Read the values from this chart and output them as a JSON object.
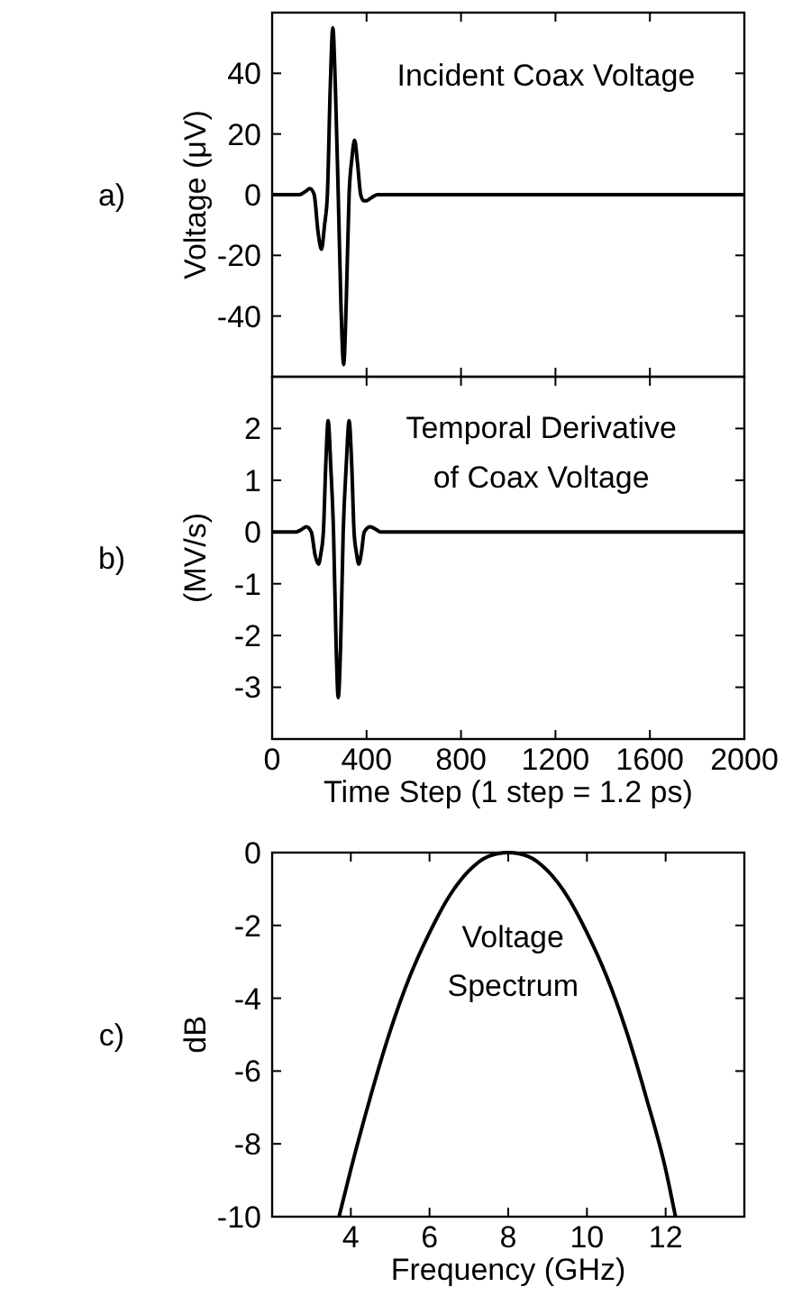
{
  "chart_data": [
    {
      "type": "line",
      "title": "a)",
      "ylabel": "Voltage (μV)",
      "annotations": [
        "Incident Coax Voltage"
      ],
      "xlim": [
        0,
        2000
      ],
      "xticks": [
        0,
        400,
        800,
        1200,
        1600,
        2000
      ],
      "ylim": [
        -60,
        60
      ],
      "yticks": [
        -40,
        -20,
        0,
        20,
        40
      ],
      "tick_labels": "y",
      "grid": false,
      "line_style": "solid",
      "series": [
        {
          "color": "#000000",
          "x": [
            0,
            115,
            140,
            160,
            178,
            194,
            209,
            222,
            234,
            246,
            257,
            268,
            280,
            292,
            303,
            314,
            326,
            338,
            349,
            362,
            375,
            388,
            400,
            420,
            446,
            2000
          ],
          "values": [
            0,
            0,
            1,
            2,
            0,
            -12,
            -18,
            -10,
            0,
            35,
            55,
            35,
            0,
            -38,
            -56,
            -35,
            0,
            12,
            18,
            10,
            0,
            -2,
            -2,
            -1,
            0,
            0
          ]
        }
      ]
    },
    {
      "type": "line",
      "title": "b)",
      "ylabel": "(MV/s)",
      "xlabel": "Time Step (1 step = 1.2 ps)",
      "annotations": [
        "Temporal Derivative\nof Coax Voltage"
      ],
      "xlim": [
        0,
        2000
      ],
      "xticks": [
        0,
        400,
        800,
        1200,
        1600,
        2000
      ],
      "ylim": [
        -4,
        3
      ],
      "yticks": [
        -3,
        -2,
        -1,
        0,
        1,
        2
      ],
      "grid": false,
      "line_style": "solid",
      "series": [
        {
          "color": "#000000",
          "x": [
            0,
            102,
            125,
            145,
            166,
            182,
            196,
            207,
            217,
            228,
            237,
            249,
            260,
            271,
            280,
            290,
            301,
            314,
            326,
            337,
            347,
            357,
            367,
            378,
            390,
            415,
            440,
            459,
            2000
          ],
          "values": [
            0,
            0,
            0.05,
            0.1,
            0,
            -0.45,
            -0.62,
            -0.4,
            0,
            1.4,
            2.15,
            1.2,
            0,
            -2.2,
            -3.2,
            -2.2,
            0,
            1.3,
            2.15,
            1.3,
            0,
            -0.4,
            -0.62,
            -0.4,
            0,
            0.1,
            0.05,
            0,
            0
          ]
        }
      ]
    },
    {
      "type": "line",
      "title": "c)",
      "ylabel": "dB",
      "xlabel": "Frequency (GHz)",
      "annotations": [
        "Voltage\nSpectrum"
      ],
      "xlim": [
        2,
        14
      ],
      "xticks": [
        4,
        6,
        8,
        10,
        12
      ],
      "ylim": [
        -10,
        0
      ],
      "yticks": [
        -10,
        -8,
        -6,
        -4,
        -2,
        0
      ],
      "grid": false,
      "line_style": "solid",
      "series": [
        {
          "color": "#000000",
          "x": [
            3.7,
            4,
            4.5,
            5,
            5.5,
            6,
            6.5,
            7,
            7.5,
            8,
            8.5,
            9,
            9.5,
            10,
            10.5,
            11,
            11.5,
            12,
            12.25
          ],
          "values": [
            -10,
            -8.7,
            -6.7,
            -4.9,
            -3.4,
            -2.2,
            -1.2,
            -0.5,
            -0.1,
            0,
            -0.1,
            -0.5,
            -1.2,
            -2.2,
            -3.4,
            -4.9,
            -6.7,
            -8.7,
            -10
          ]
        }
      ]
    }
  ]
}
